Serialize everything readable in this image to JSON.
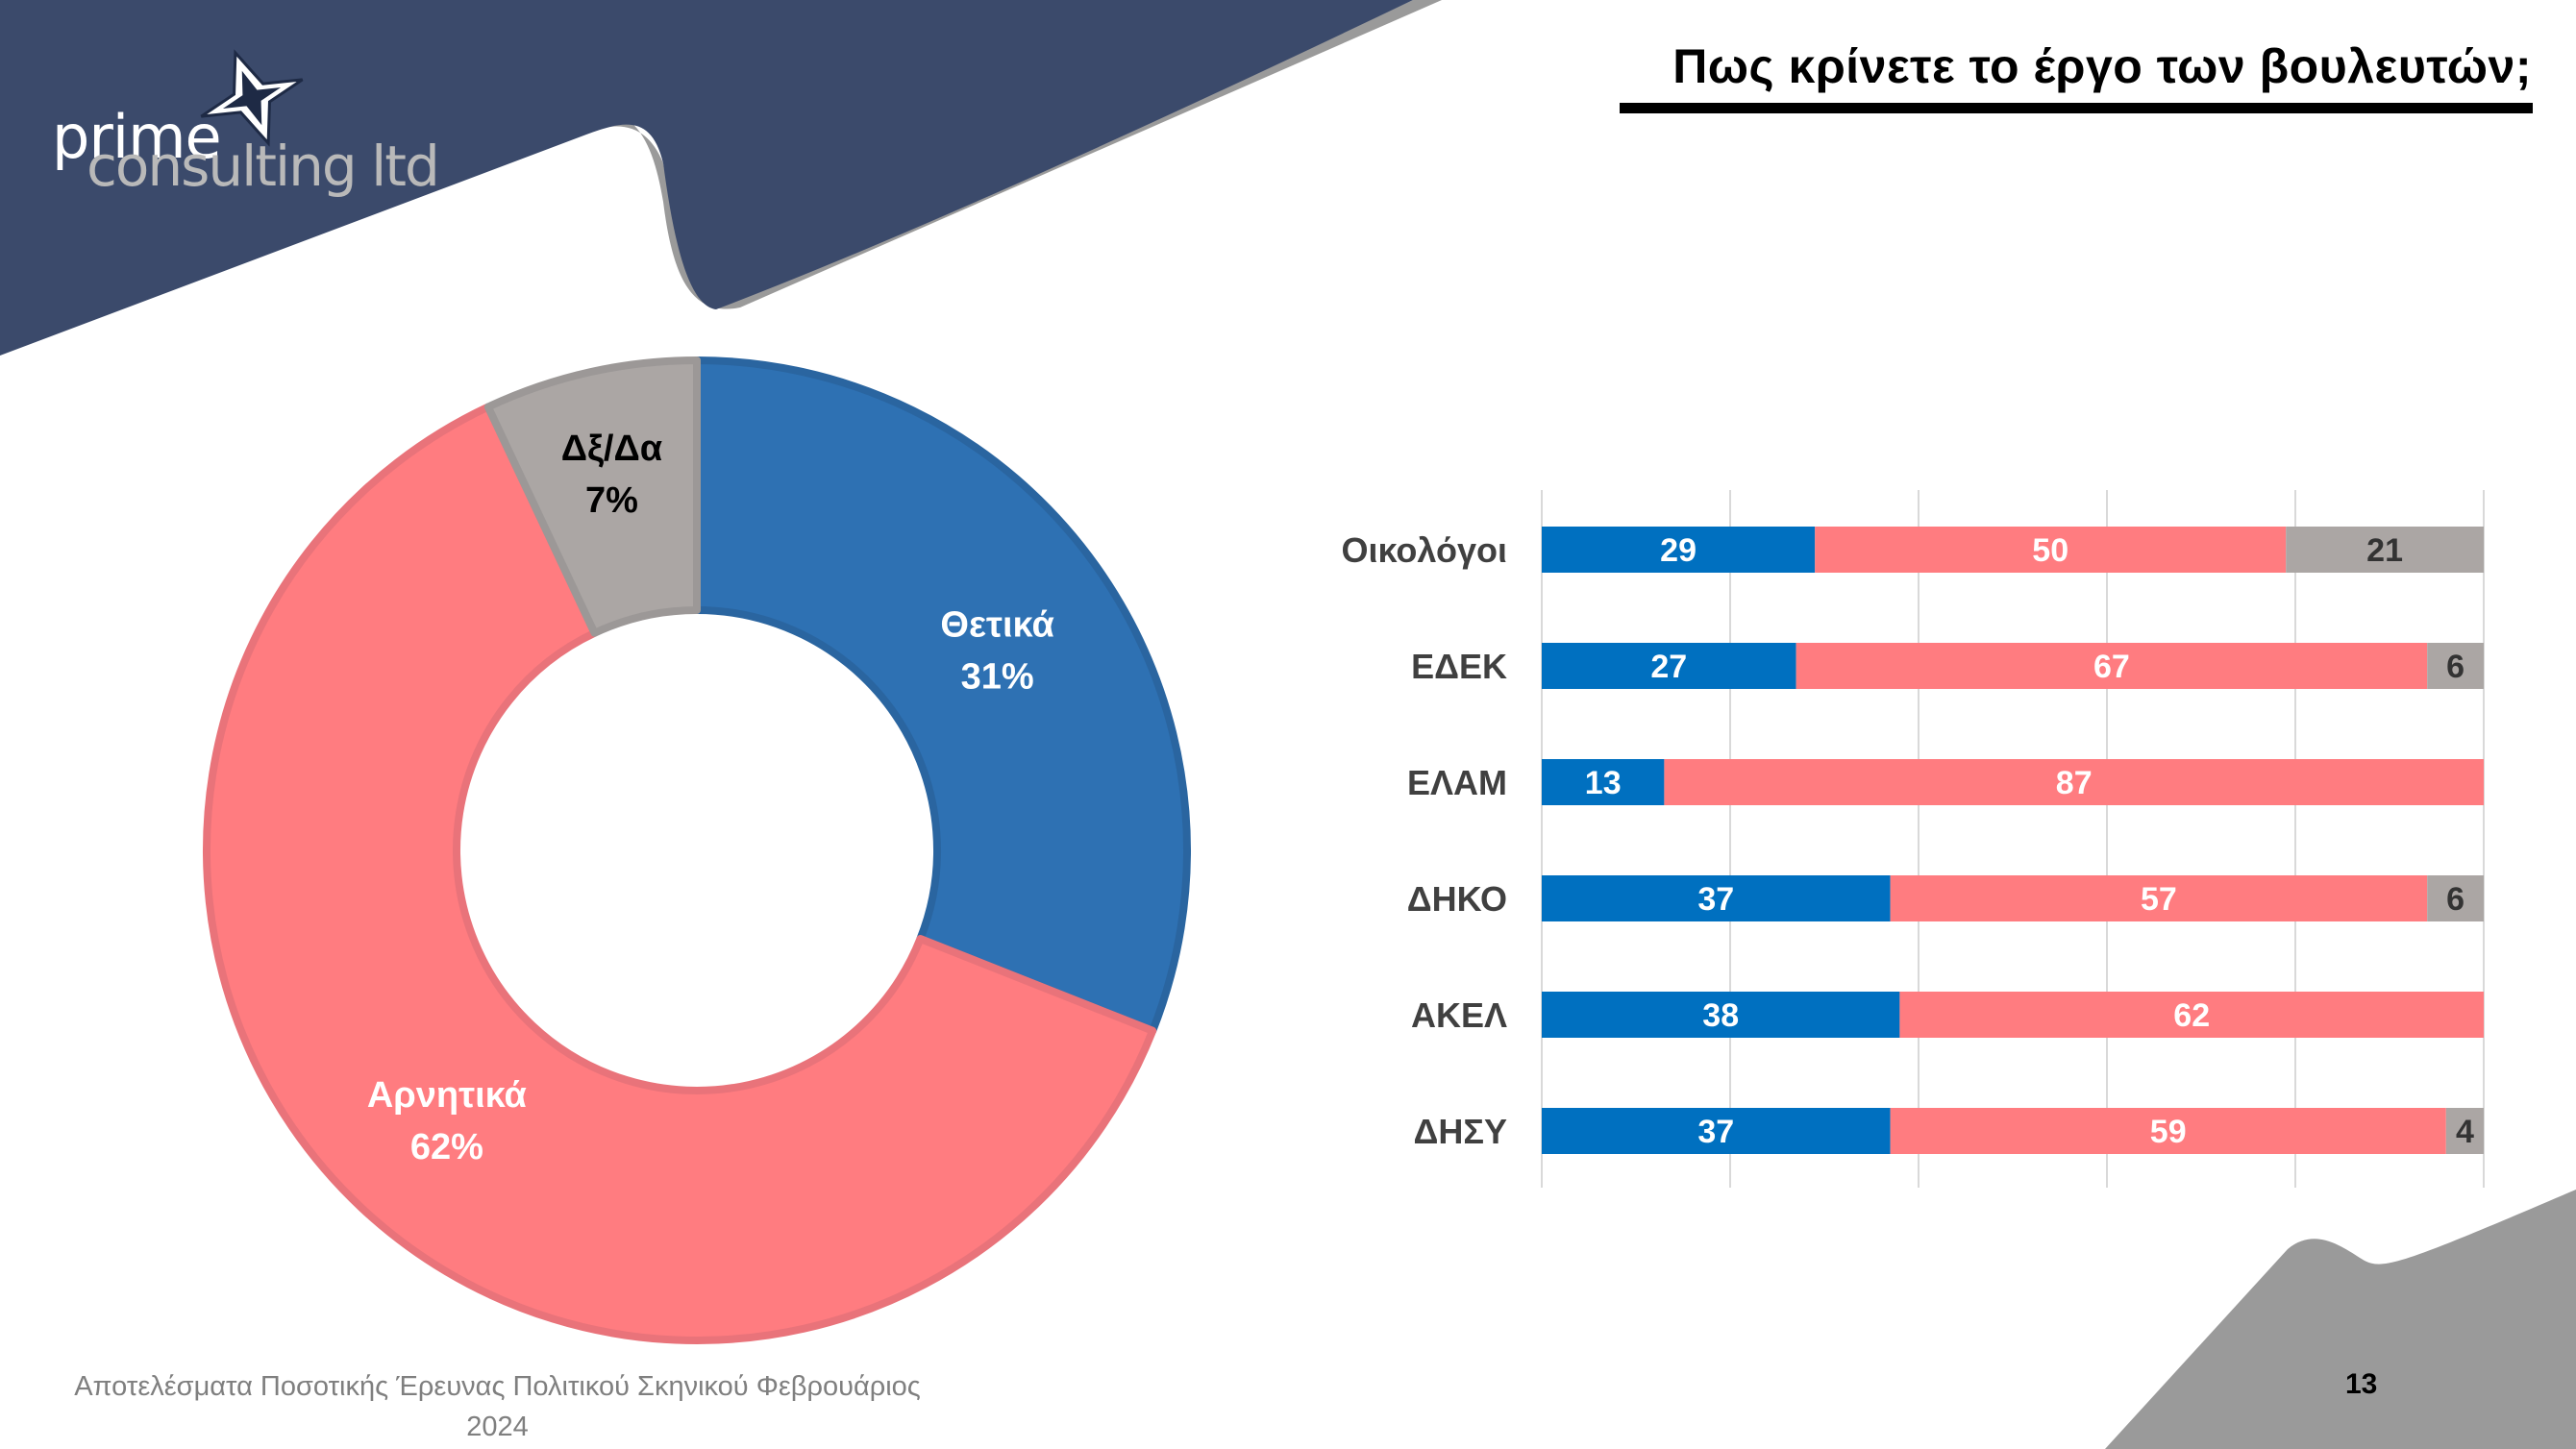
{
  "header": {
    "title": "Πως κρίνετε το έργο των βουλευτών;"
  },
  "logo": {
    "line1": "prime",
    "line2": "consulting ltd",
    "mark": "four-point-star-icon"
  },
  "colors": {
    "navy": "#3b4a6b",
    "grey_band": "#9a9a9a",
    "positive": "#2e71b3",
    "negative": "#ff7c80",
    "dont_know": "#aba6a4",
    "bar_positive": "#0070c0"
  },
  "chart_data": [
    {
      "type": "pie",
      "style": "donut",
      "labels": [
        "Θετικά",
        "Αρνητικά",
        "Δξ/Δα"
      ],
      "values": [
        31,
        62,
        7
      ],
      "value_labels": [
        "31%",
        "62%",
        "7%"
      ]
    },
    {
      "type": "bar",
      "orientation": "horizontal",
      "stacked": true,
      "categories": [
        "Οικολόγοι",
        "ΕΔΕΚ",
        "ΕΛΑΜ",
        "ΔΗΚΟ",
        "ΑΚΕΛ",
        "ΔΗΣΥ"
      ],
      "series": [
        {
          "values": [
            29,
            27,
            13,
            37,
            38,
            37
          ]
        },
        {
          "values": [
            50,
            67,
            87,
            57,
            62,
            59
          ]
        },
        {
          "values": [
            21,
            6,
            0,
            6,
            0,
            4
          ]
        }
      ],
      "xlim": [
        0,
        100
      ],
      "grid": true
    }
  ],
  "footer": {
    "source_line1": "Αποτελέσματα Ποσοτικής Έρευνας Πολιτικού Σκηνικού Φεβρουάριος",
    "source_line2": "2024",
    "page_number": "13"
  }
}
